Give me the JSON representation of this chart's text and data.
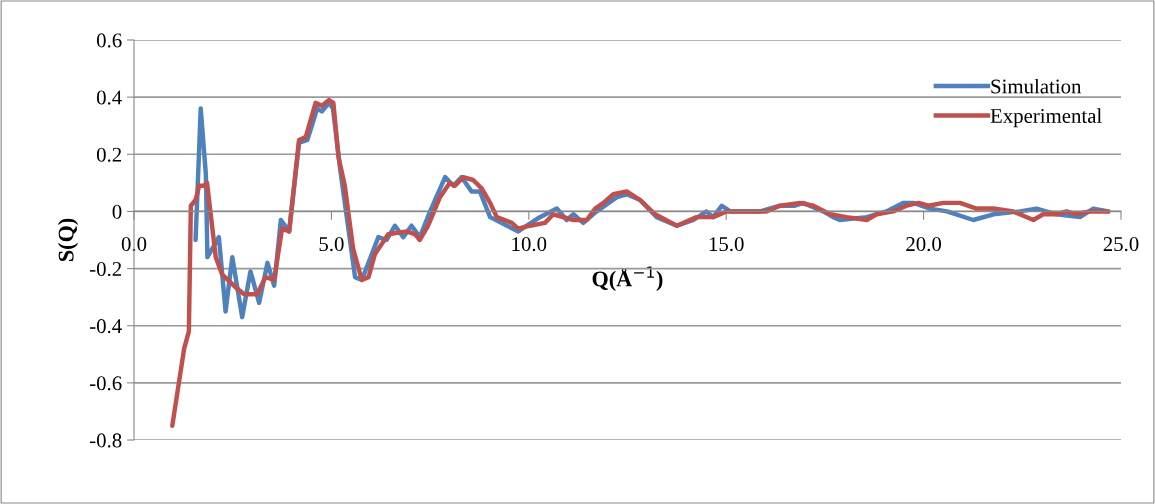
{
  "chart_data": {
    "type": "line",
    "xlabel": "Q(Å$^{−1}$)",
    "ylabel": "S(Q)",
    "xlim": [
      0,
      25
    ],
    "ylim": [
      -0.8,
      0.6
    ],
    "xticks": [
      {
        "value": 0,
        "label": "0.0"
      },
      {
        "value": 5,
        "label": "5.0"
      },
      {
        "value": 10,
        "label": "10.0"
      },
      {
        "value": 15,
        "label": "15.0"
      },
      {
        "value": 20,
        "label": "20.0"
      },
      {
        "value": 25,
        "label": "25.0"
      }
    ],
    "yticks": [
      -0.8,
      -0.6,
      -0.4,
      -0.2,
      0,
      0.2,
      0.4,
      0.6
    ],
    "grid": "y",
    "legend": "top right",
    "marker": "none",
    "line_style": "solid",
    "series": [
      {
        "name": "Simulation",
        "color": "#4f81bd",
        "x": [
          1.56,
          1.69,
          1.82,
          1.86,
          2.15,
          2.32,
          2.49,
          2.74,
          2.95,
          3.17,
          3.38,
          3.55,
          3.72,
          3.93,
          4.18,
          4.39,
          4.64,
          4.76,
          4.94,
          5.04,
          5.22,
          5.6,
          5.77,
          6.19,
          6.4,
          6.61,
          6.82,
          7.03,
          7.24,
          7.5,
          7.88,
          8.09,
          8.3,
          8.55,
          8.76,
          9.02,
          9.73,
          9.95,
          10.28,
          10.71,
          10.96,
          11.13,
          11.38,
          11.72,
          12.23,
          12.48,
          12.82,
          13.24,
          13.75,
          14.17,
          14.5,
          14.67,
          14.89,
          15.1,
          15.86,
          16.36,
          16.74,
          16.95,
          17.46,
          17.71,
          17.88,
          18.56,
          19.06,
          19.49,
          19.74,
          20.16,
          20.59,
          21.26,
          21.77,
          22.44,
          22.86,
          23.37,
          23.96,
          24.3,
          24.68
        ],
        "values": [
          -0.1,
          0.36,
          0.13,
          -0.16,
          -0.09,
          -0.35,
          -0.16,
          -0.37,
          -0.21,
          -0.32,
          -0.18,
          -0.26,
          -0.03,
          -0.07,
          0.24,
          0.25,
          0.36,
          0.35,
          0.38,
          0.36,
          0.15,
          -0.23,
          -0.24,
          -0.09,
          -0.1,
          -0.05,
          -0.09,
          -0.05,
          -0.09,
          0.0,
          0.12,
          0.09,
          0.12,
          0.07,
          0.07,
          -0.02,
          -0.07,
          -0.05,
          -0.02,
          0.01,
          -0.03,
          -0.01,
          -0.04,
          0.0,
          0.05,
          0.06,
          0.04,
          -0.02,
          -0.05,
          -0.03,
          0.0,
          -0.02,
          0.02,
          0.0,
          0.0,
          0.02,
          0.02,
          0.03,
          0.0,
          -0.02,
          -0.03,
          -0.02,
          0.0,
          0.03,
          0.03,
          0.01,
          0.0,
          -0.03,
          -0.01,
          0.0,
          0.01,
          -0.01,
          -0.02,
          0.01,
          0.0
        ]
      },
      {
        "name": "Experimental",
        "color": "#c0504d",
        "x": [
          0.97,
          1.27,
          1.39,
          1.44,
          1.56,
          1.65,
          1.77,
          1.85,
          2.07,
          2.23,
          2.61,
          2.79,
          3.12,
          3.33,
          3.55,
          3.75,
          3.93,
          4.18,
          4.35,
          4.6,
          4.76,
          4.94,
          5.05,
          5.18,
          5.34,
          5.55,
          5.77,
          5.94,
          6.1,
          6.44,
          6.91,
          7.12,
          7.24,
          7.45,
          7.75,
          8.0,
          8.13,
          8.34,
          8.59,
          8.81,
          9.02,
          9.19,
          9.57,
          9.73,
          10.03,
          10.41,
          10.62,
          11.13,
          11.47,
          11.68,
          11.89,
          12.14,
          12.48,
          12.82,
          13.2,
          13.75,
          14.25,
          14.67,
          15.01,
          15.52,
          16.02,
          16.36,
          16.87,
          17.21,
          17.63,
          18.05,
          18.56,
          18.81,
          19.23,
          19.57,
          19.87,
          20.12,
          20.5,
          20.92,
          21.34,
          21.77,
          22.27,
          22.78,
          23.03,
          23.37,
          23.62,
          23.88,
          24.2,
          24.68
        ],
        "values": [
          -0.75,
          -0.48,
          -0.42,
          0.02,
          0.04,
          0.09,
          0.09,
          0.1,
          -0.16,
          -0.22,
          -0.27,
          -0.29,
          -0.29,
          -0.23,
          -0.24,
          -0.06,
          -0.07,
          0.25,
          0.26,
          0.38,
          0.37,
          0.39,
          0.38,
          0.19,
          0.09,
          -0.13,
          -0.24,
          -0.23,
          -0.15,
          -0.08,
          -0.07,
          -0.08,
          -0.1,
          -0.05,
          0.05,
          0.1,
          0.09,
          0.12,
          0.11,
          0.08,
          0.03,
          -0.02,
          -0.04,
          -0.06,
          -0.05,
          -0.04,
          -0.01,
          -0.03,
          -0.03,
          0.01,
          0.03,
          0.06,
          0.07,
          0.04,
          -0.01,
          -0.05,
          -0.02,
          -0.02,
          0.0,
          0.0,
          0.0,
          0.02,
          0.03,
          0.02,
          -0.01,
          -0.02,
          -0.03,
          -0.01,
          0.0,
          0.02,
          0.03,
          0.02,
          0.03,
          0.03,
          0.01,
          0.01,
          0.0,
          -0.03,
          -0.01,
          -0.01,
          0.0,
          -0.01,
          0.0,
          0.0
        ]
      }
    ]
  }
}
